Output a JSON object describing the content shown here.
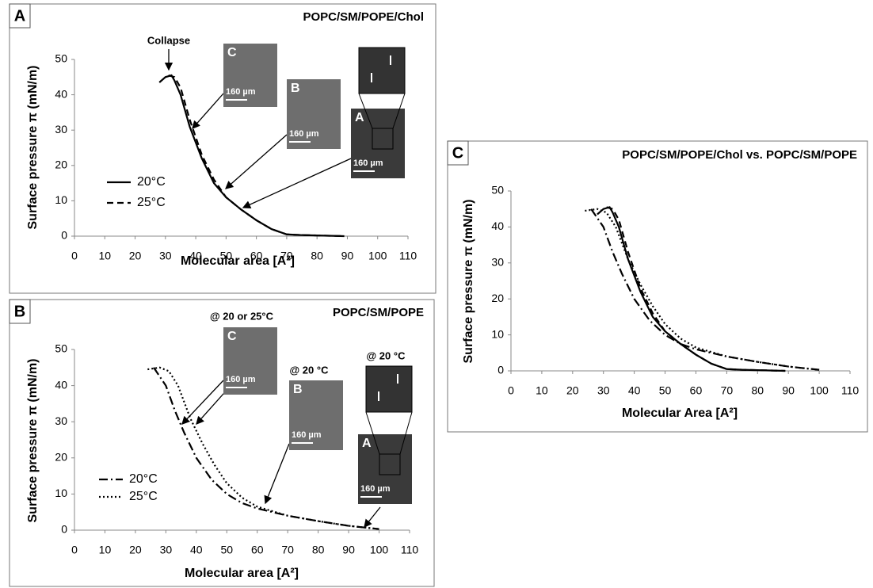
{
  "chart_data": [
    {
      "type": "line",
      "label": "A",
      "title": "POPC/SM/POPE/Chol",
      "xlabel": "Molecular area [A²]",
      "ylabel": "Surface pressure π (mN/m)",
      "xlim": [
        0,
        110
      ],
      "ylim": [
        0,
        50
      ],
      "xticks": [
        0,
        10,
        20,
        30,
        40,
        50,
        60,
        70,
        80,
        90,
        100,
        110
      ],
      "yticks": [
        0,
        10,
        20,
        30,
        40,
        50
      ],
      "legend": true,
      "series": [
        {
          "name": "20°C",
          "color": "#000000",
          "dash": "solid",
          "x": [
            28,
            30,
            32,
            33,
            35,
            38,
            42,
            46,
            50,
            55,
            60,
            65,
            70,
            75,
            80,
            89
          ],
          "values": [
            43.5,
            45,
            45.5,
            44,
            40,
            31,
            22,
            15,
            11,
            7.5,
            4.5,
            2,
            0.5,
            0.3,
            0.2,
            0
          ]
        },
        {
          "name": "25°C",
          "color": "#000000",
          "dash": "dashed",
          "x": [
            31,
            33,
            35,
            38,
            42,
            46,
            50,
            55,
            60,
            65,
            70,
            75,
            80,
            89
          ],
          "values": [
            45.5,
            45,
            42,
            33,
            23,
            16,
            11,
            7.5,
            4.5,
            2,
            0.5,
            0.3,
            0.2,
            0
          ]
        }
      ],
      "annotations": [
        "Collapse"
      ],
      "insets": [
        {
          "label": "C",
          "scale": "160 µm"
        },
        {
          "label": "B",
          "scale": "160 µm"
        },
        {
          "label": "A",
          "scale": "160 µm"
        }
      ]
    },
    {
      "type": "line",
      "label": "B",
      "title": "POPC/SM/POPE",
      "xlabel": "Molecular area [A²]",
      "ylabel": "Surface pressure π (mN/m)",
      "xlim": [
        0,
        110
      ],
      "ylim": [
        0,
        50
      ],
      "xticks": [
        0,
        10,
        20,
        30,
        40,
        50,
        60,
        70,
        80,
        90,
        100,
        110
      ],
      "yticks": [
        0,
        10,
        20,
        30,
        40,
        50
      ],
      "legend": true,
      "series": [
        {
          "name": "20°C",
          "color": "#000000",
          "dash": "dashdot",
          "x": [
            26,
            30,
            33,
            36,
            40,
            45,
            50,
            55,
            60,
            70,
            80,
            90,
            100
          ],
          "values": [
            45,
            40,
            33,
            27,
            20,
            14,
            10,
            7.5,
            6,
            4,
            2.5,
            1.2,
            0.3
          ]
        },
        {
          "name": "25°C",
          "color": "#000000",
          "dash": "dotted",
          "x": [
            24,
            28,
            31,
            34,
            38,
            42,
            46,
            50,
            55,
            60,
            70,
            80,
            90,
            100
          ],
          "values": [
            44.5,
            45,
            44,
            40,
            31,
            24,
            18,
            13,
            9,
            6.5,
            4,
            2.5,
            1.2,
            0.3
          ]
        }
      ],
      "annotations": [
        "@ 20 or 25°C",
        "@ 20 °C",
        "@ 20 °C"
      ],
      "insets": [
        {
          "label": "C",
          "scale": "160 µm"
        },
        {
          "label": "B",
          "scale": "160 µm"
        },
        {
          "label": "A",
          "scale": "160 µm"
        }
      ]
    },
    {
      "type": "line",
      "label": "C",
      "title": "POPC/SM/POPE/Chol vs. POPC/SM/POPE",
      "xlabel": "Molecular Area [A²]",
      "ylabel": "Surface pressure π (mN/m)",
      "xlim": [
        0,
        110
      ],
      "ylim": [
        0,
        50
      ],
      "xticks": [
        0,
        10,
        20,
        30,
        40,
        50,
        60,
        70,
        80,
        90,
        100,
        110
      ],
      "yticks": [
        0,
        10,
        20,
        30,
        40,
        50
      ],
      "legend": false,
      "series": [
        {
          "color": "#000000",
          "dash": "solid",
          "x": [
            28,
            30,
            32,
            33,
            35,
            38,
            42,
            46,
            50,
            55,
            60,
            65,
            70,
            75,
            80,
            89
          ],
          "values": [
            43.5,
            45,
            45.5,
            44,
            40,
            31,
            22,
            15,
            11,
            7.5,
            4.5,
            2,
            0.5,
            0.3,
            0.2,
            0
          ]
        },
        {
          "color": "#000000",
          "dash": "dashed",
          "x": [
            31,
            33,
            35,
            38,
            42,
            46,
            50,
            55,
            60,
            65,
            70,
            75,
            80,
            89
          ],
          "values": [
            45.5,
            45,
            42,
            33,
            23,
            16,
            11,
            7.5,
            4.5,
            2,
            0.5,
            0.3,
            0.2,
            0
          ]
        },
        {
          "color": "#000000",
          "dash": "dashdot",
          "x": [
            26,
            30,
            33,
            36,
            40,
            45,
            50,
            55,
            60,
            70,
            80,
            90,
            100
          ],
          "values": [
            45,
            40,
            33,
            27,
            20,
            14,
            10,
            7.5,
            6,
            4,
            2.5,
            1.2,
            0.3
          ]
        },
        {
          "color": "#000000",
          "dash": "dotted",
          "x": [
            24,
            28,
            31,
            34,
            38,
            42,
            46,
            50,
            55,
            60,
            70,
            80,
            90,
            100
          ],
          "values": [
            44.5,
            45,
            44,
            40,
            31,
            24,
            18,
            13,
            9,
            6.5,
            4,
            2.5,
            1.2,
            0.3
          ]
        }
      ],
      "annotations": [],
      "insets": []
    }
  ]
}
